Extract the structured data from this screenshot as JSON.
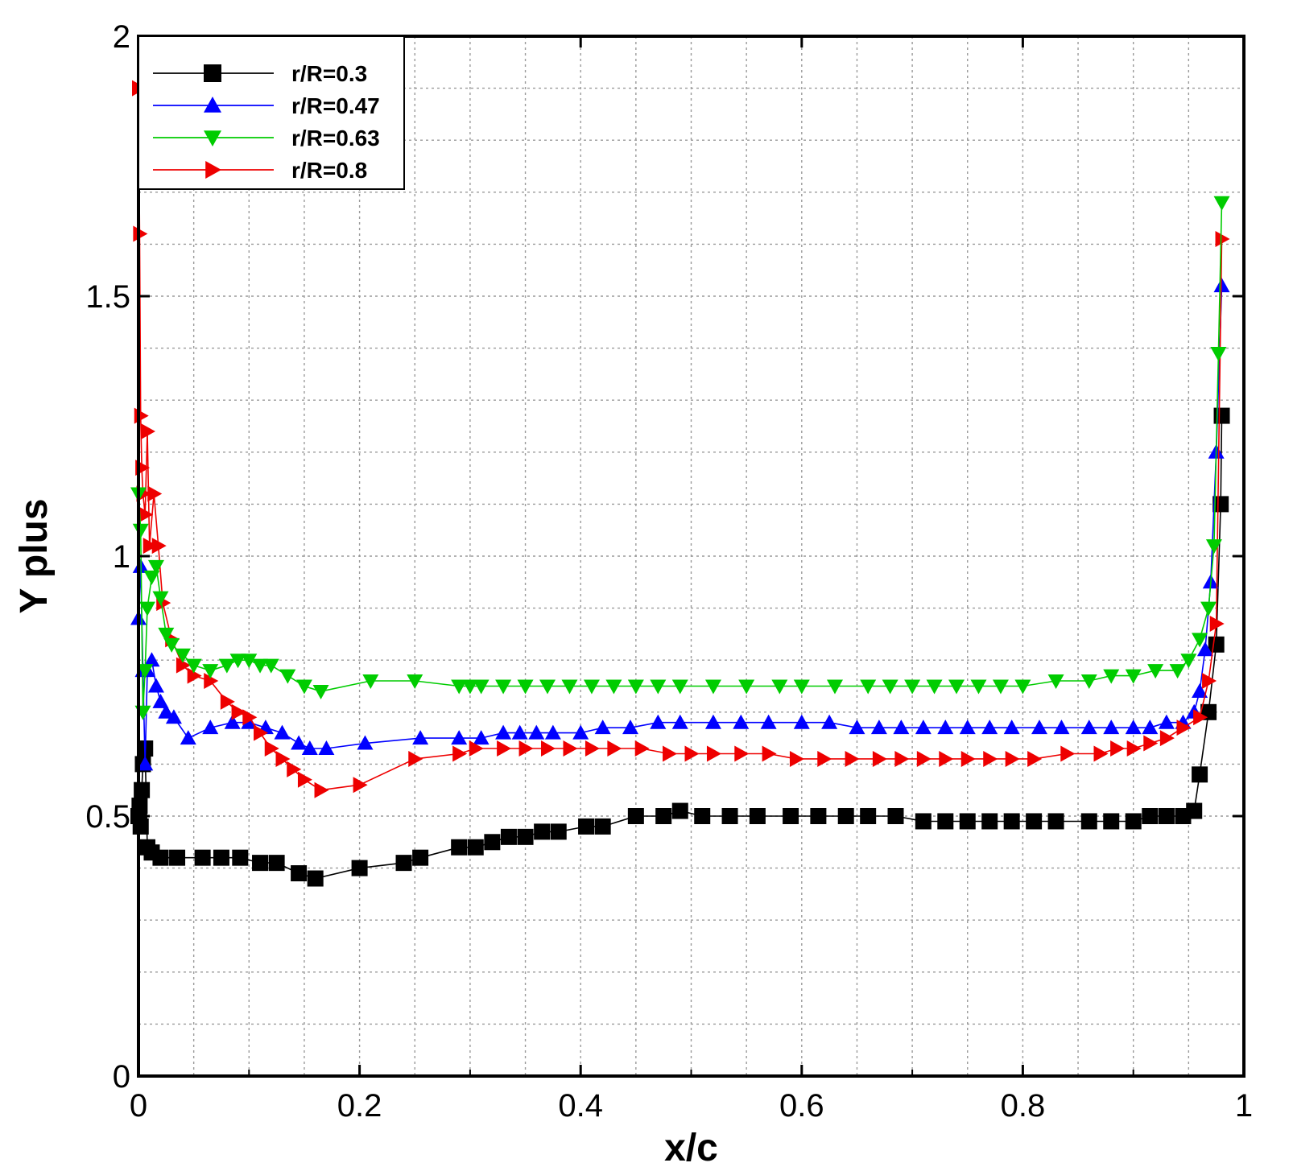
{
  "chart_data": {
    "type": "line",
    "xlabel": "x/c",
    "ylabel": "Y plus",
    "xlim": [
      0,
      1
    ],
    "ylim": [
      0,
      2
    ],
    "x_ticks": [
      "0",
      "0.2",
      "0.4",
      "0.6",
      "0.8",
      "1"
    ],
    "y_ticks": [
      "0",
      "0.5",
      "1",
      "1.5",
      "2"
    ],
    "x_tick_values": [
      0,
      0.2,
      0.4,
      0.6,
      0.8,
      1
    ],
    "y_tick_values": [
      0,
      0.5,
      1,
      1.5,
      2
    ],
    "grid": true,
    "legend_position": "top-left",
    "series": [
      {
        "name": "r/R=0.3",
        "color": "#000000",
        "marker": "square",
        "x": [
          0,
          0.001,
          0.002,
          0.003,
          0.004,
          0.006,
          0.008,
          0.012,
          0.02,
          0.035,
          0.058,
          0.075,
          0.092,
          0.11,
          0.125,
          0.145,
          0.16,
          0.2,
          0.24,
          0.255,
          0.29,
          0.305,
          0.32,
          0.335,
          0.35,
          0.365,
          0.38,
          0.405,
          0.42,
          0.45,
          0.475,
          0.49,
          0.51,
          0.535,
          0.56,
          0.59,
          0.615,
          0.64,
          0.66,
          0.685,
          0.71,
          0.73,
          0.75,
          0.77,
          0.79,
          0.81,
          0.83,
          0.86,
          0.88,
          0.9,
          0.915,
          0.93,
          0.945,
          0.955,
          0.96,
          0.968,
          0.975,
          0.979,
          0.98
        ],
        "y": [
          0.5,
          0.52,
          0.48,
          0.55,
          0.6,
          0.63,
          0.44,
          0.43,
          0.42,
          0.42,
          0.42,
          0.42,
          0.42,
          0.41,
          0.41,
          0.39,
          0.38,
          0.4,
          0.41,
          0.42,
          0.44,
          0.44,
          0.45,
          0.46,
          0.46,
          0.47,
          0.47,
          0.48,
          0.48,
          0.5,
          0.5,
          0.51,
          0.5,
          0.5,
          0.5,
          0.5,
          0.5,
          0.5,
          0.5,
          0.5,
          0.49,
          0.49,
          0.49,
          0.49,
          0.49,
          0.49,
          0.49,
          0.49,
          0.49,
          0.49,
          0.5,
          0.5,
          0.5,
          0.51,
          0.58,
          0.7,
          0.83,
          1.1,
          1.27
        ]
      },
      {
        "name": "r/R=0.47",
        "color": "#0000ff",
        "marker": "triangle-up",
        "x": [
          0,
          0.002,
          0.004,
          0.006,
          0.008,
          0.012,
          0.016,
          0.02,
          0.025,
          0.032,
          0.045,
          0.065,
          0.085,
          0.1,
          0.115,
          0.13,
          0.145,
          0.155,
          0.17,
          0.205,
          0.255,
          0.29,
          0.31,
          0.33,
          0.345,
          0.36,
          0.375,
          0.4,
          0.42,
          0.445,
          0.47,
          0.49,
          0.52,
          0.545,
          0.57,
          0.6,
          0.625,
          0.65,
          0.67,
          0.69,
          0.71,
          0.73,
          0.75,
          0.77,
          0.79,
          0.815,
          0.835,
          0.86,
          0.88,
          0.9,
          0.915,
          0.93,
          0.945,
          0.955,
          0.96,
          0.965,
          0.97,
          0.975,
          0.98
        ],
        "y": [
          0.88,
          0.98,
          0.78,
          0.6,
          0.78,
          0.8,
          0.75,
          0.72,
          0.7,
          0.69,
          0.65,
          0.67,
          0.68,
          0.68,
          0.67,
          0.66,
          0.64,
          0.63,
          0.63,
          0.64,
          0.65,
          0.65,
          0.65,
          0.66,
          0.66,
          0.66,
          0.66,
          0.66,
          0.67,
          0.67,
          0.68,
          0.68,
          0.68,
          0.68,
          0.68,
          0.68,
          0.68,
          0.67,
          0.67,
          0.67,
          0.67,
          0.67,
          0.67,
          0.67,
          0.67,
          0.67,
          0.67,
          0.67,
          0.67,
          0.67,
          0.67,
          0.68,
          0.68,
          0.7,
          0.74,
          0.82,
          0.95,
          1.2,
          1.52
        ]
      },
      {
        "name": "r/R=0.63",
        "color": "#00cc00",
        "marker": "triangle-down",
        "x": [
          0,
          0.002,
          0.004,
          0.006,
          0.008,
          0.012,
          0.016,
          0.02,
          0.025,
          0.03,
          0.04,
          0.05,
          0.065,
          0.08,
          0.09,
          0.1,
          0.11,
          0.12,
          0.135,
          0.15,
          0.165,
          0.21,
          0.25,
          0.29,
          0.3,
          0.31,
          0.33,
          0.35,
          0.37,
          0.39,
          0.41,
          0.43,
          0.45,
          0.47,
          0.49,
          0.52,
          0.55,
          0.58,
          0.6,
          0.63,
          0.66,
          0.68,
          0.7,
          0.72,
          0.74,
          0.76,
          0.78,
          0.8,
          0.83,
          0.86,
          0.88,
          0.9,
          0.92,
          0.94,
          0.95,
          0.96,
          0.968,
          0.973,
          0.977,
          0.98
        ],
        "y": [
          1.12,
          1.05,
          0.7,
          0.78,
          0.9,
          0.96,
          0.98,
          0.92,
          0.85,
          0.83,
          0.81,
          0.79,
          0.78,
          0.79,
          0.8,
          0.8,
          0.79,
          0.79,
          0.77,
          0.75,
          0.74,
          0.76,
          0.76,
          0.75,
          0.75,
          0.75,
          0.75,
          0.75,
          0.75,
          0.75,
          0.75,
          0.75,
          0.75,
          0.75,
          0.75,
          0.75,
          0.75,
          0.75,
          0.75,
          0.75,
          0.75,
          0.75,
          0.75,
          0.75,
          0.75,
          0.75,
          0.75,
          0.75,
          0.76,
          0.76,
          0.77,
          0.77,
          0.78,
          0.78,
          0.8,
          0.84,
          0.9,
          1.02,
          1.39,
          1.68
        ]
      },
      {
        "name": "r/R=0.8",
        "color": "#ee0000",
        "marker": "triangle-right",
        "x": [
          0,
          0.001,
          0.002,
          0.003,
          0.004,
          0.006,
          0.008,
          0.01,
          0.014,
          0.018,
          0.022,
          0.03,
          0.04,
          0.05,
          0.065,
          0.08,
          0.09,
          0.1,
          0.11,
          0.12,
          0.13,
          0.14,
          0.15,
          0.165,
          0.2,
          0.25,
          0.29,
          0.305,
          0.33,
          0.35,
          0.37,
          0.39,
          0.41,
          0.43,
          0.455,
          0.48,
          0.5,
          0.52,
          0.545,
          0.57,
          0.595,
          0.62,
          0.645,
          0.67,
          0.69,
          0.71,
          0.73,
          0.75,
          0.77,
          0.79,
          0.81,
          0.84,
          0.87,
          0.885,
          0.9,
          0.915,
          0.93,
          0.945,
          0.96,
          0.968,
          0.975,
          0.98
        ],
        "y": [
          1.9,
          1.62,
          1.27,
          1.17,
          1.12,
          1.08,
          1.24,
          1.02,
          1.12,
          1.02,
          0.91,
          0.84,
          0.79,
          0.77,
          0.76,
          0.72,
          0.7,
          0.69,
          0.66,
          0.63,
          0.61,
          0.59,
          0.57,
          0.55,
          0.56,
          0.61,
          0.62,
          0.63,
          0.63,
          0.63,
          0.63,
          0.63,
          0.63,
          0.63,
          0.63,
          0.62,
          0.62,
          0.62,
          0.62,
          0.62,
          0.61,
          0.61,
          0.61,
          0.61,
          0.61,
          0.61,
          0.61,
          0.61,
          0.61,
          0.61,
          0.61,
          0.62,
          0.62,
          0.63,
          0.63,
          0.64,
          0.65,
          0.67,
          0.69,
          0.76,
          0.87,
          1.61
        ]
      }
    ]
  }
}
